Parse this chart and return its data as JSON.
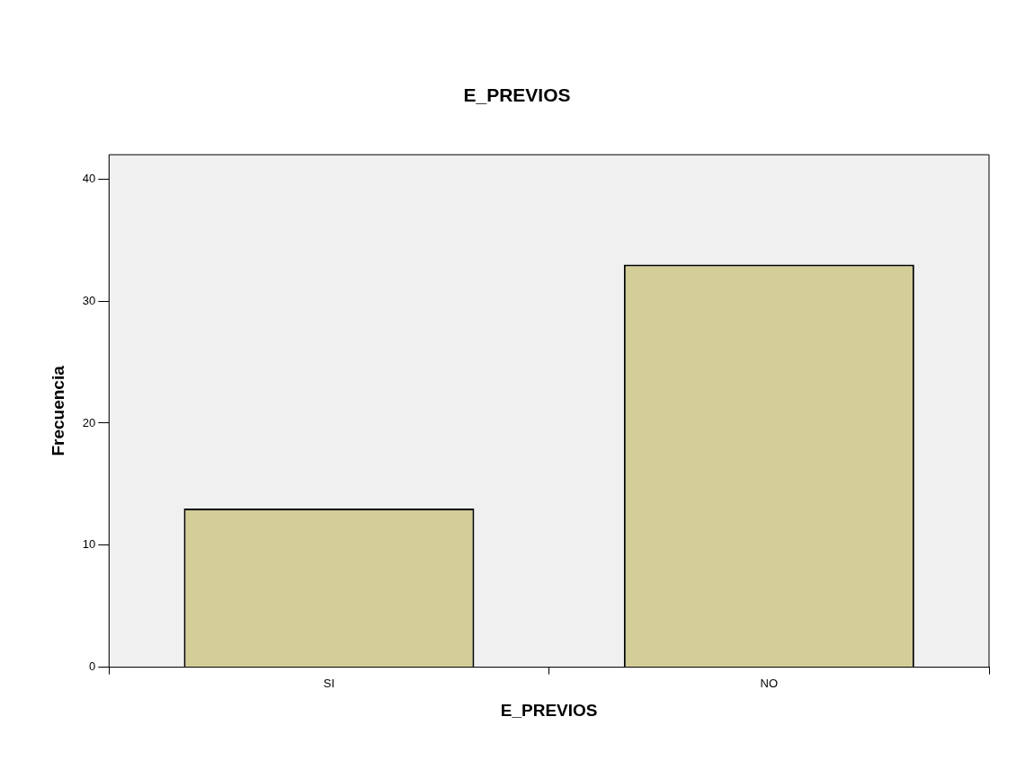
{
  "chart_data": {
    "type": "bar",
    "title": "E_PREVIOS",
    "xlabel": "E_PREVIOS",
    "ylabel": "Frecuencia",
    "categories": [
      "SI",
      "NO"
    ],
    "values": [
      13,
      33
    ],
    "color": "#d3ce97",
    "ylim": [
      0,
      42
    ],
    "yticks": [
      0,
      10,
      20,
      30,
      40
    ],
    "grid": false,
    "legend": false
  }
}
